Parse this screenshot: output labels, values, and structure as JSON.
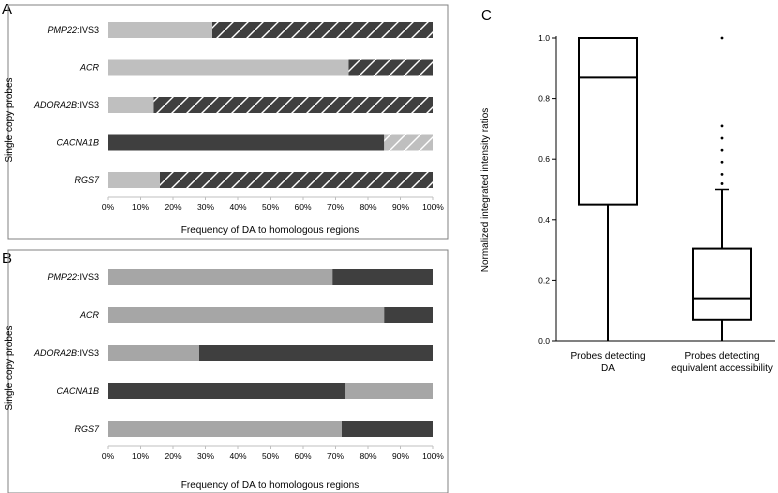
{
  "chart_data": [
    {
      "panel": "A",
      "type": "bar",
      "orientation": "horizontal",
      "stacked": true,
      "ylabel": "Single copy probes",
      "xlabel": "Frequency of DA  to homologous regions",
      "xlim": [
        0,
        100
      ],
      "xticks": [
        "0%",
        "10%",
        "20%",
        "30%",
        "40%",
        "50%",
        "60%",
        "70%",
        "80%",
        "90%",
        "100%"
      ],
      "categories": [
        {
          "prefix": "PMP22",
          "suffix": ":IVS3"
        },
        {
          "prefix": "ACR",
          "suffix": ""
        },
        {
          "prefix": "ADORA2B",
          "suffix": ":IVS3"
        },
        {
          "prefix": "CACNA1B",
          "suffix": ""
        },
        {
          "prefix": "RGS7",
          "suffix": ""
        }
      ],
      "series": [
        {
          "name": "light",
          "color": "#bfbfbf",
          "hatched": false,
          "values": [
            32,
            74,
            14,
            0,
            16
          ]
        },
        {
          "name": "dark",
          "color": "#3f3f3f",
          "hatched": false,
          "values": [
            0,
            0,
            0,
            85,
            0
          ]
        },
        {
          "name": "dark-hatched",
          "color": "#3f3f3f",
          "hatched": true,
          "values": [
            68,
            26,
            86,
            0,
            84
          ]
        },
        {
          "name": "light-hatched",
          "color": "#bfbfbf",
          "hatched": true,
          "values": [
            0,
            0,
            0,
            15,
            0
          ]
        }
      ]
    },
    {
      "panel": "B",
      "type": "bar",
      "orientation": "horizontal",
      "stacked": true,
      "ylabel": "Single copy probes",
      "xlabel": "Frequency of DA  to homologous regions",
      "xlim": [
        0,
        100
      ],
      "xticks": [
        "0%",
        "10%",
        "20%",
        "30%",
        "40%",
        "50%",
        "60%",
        "70%",
        "80%",
        "90%",
        "100%"
      ],
      "categories": [
        {
          "prefix": "PMP22",
          "suffix": ":IVS3"
        },
        {
          "prefix": "ACR",
          "suffix": ""
        },
        {
          "prefix": "ADORA2B",
          "suffix": ":IVS3"
        },
        {
          "prefix": "CACNA1B",
          "suffix": ""
        },
        {
          "prefix": "RGS7",
          "suffix": ""
        }
      ],
      "series": [
        {
          "name": "light",
          "color": "#a6a6a6",
          "hatched": false,
          "values": [
            69,
            85,
            28,
            0,
            72
          ]
        },
        {
          "name": "dark",
          "color": "#3f3f3f",
          "hatched": false,
          "values": [
            31,
            15,
            72,
            73,
            28
          ]
        },
        {
          "name": "light-after",
          "color": "#a6a6a6",
          "hatched": false,
          "values": [
            0,
            0,
            0,
            27,
            0
          ]
        }
      ]
    },
    {
      "panel": "C",
      "type": "box",
      "ylabel": "Normalized integrated intensity ratios",
      "ylim": [
        0,
        1.0
      ],
      "yticks": [
        "0.0",
        "0.2",
        "0.4",
        "0.6",
        "0.8",
        "1.0"
      ],
      "boxes": [
        {
          "label_lines": [
            "Probes detecting",
            "DA"
          ],
          "min": 0.0,
          "q1": 0.45,
          "median": 0.87,
          "q3": 1.0,
          "max": 1.0,
          "outliers": []
        },
        {
          "label_lines": [
            "Probes detecting",
            "equivalent accessibility"
          ],
          "min": 0.0,
          "q1": 0.07,
          "median": 0.14,
          "q3": 0.305,
          "max": 0.5,
          "outliers": [
            0.52,
            0.55,
            0.59,
            0.63,
            0.67,
            0.71,
            1.0
          ]
        }
      ]
    }
  ]
}
